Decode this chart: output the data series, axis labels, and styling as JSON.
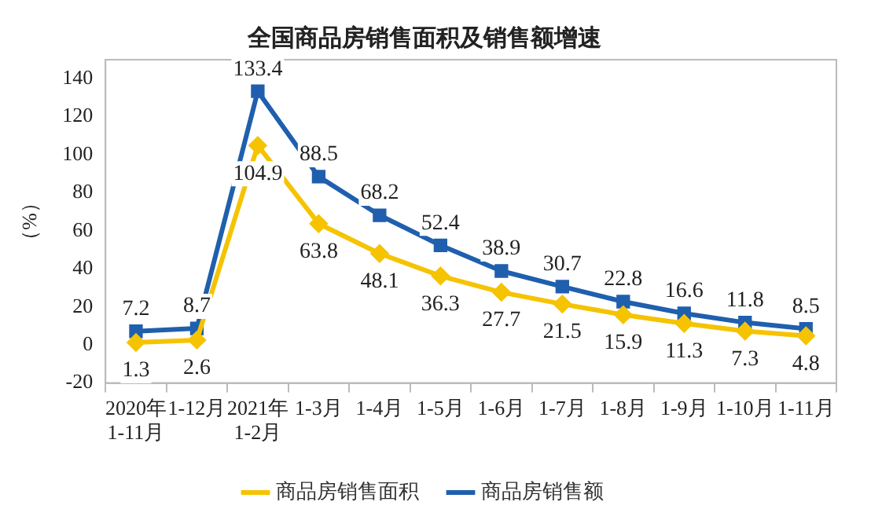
{
  "chart_data": {
    "type": "line",
    "title": "全国商品房销售面积及销售额增速",
    "ylabel": "（%）",
    "categories": [
      "2020年\n1-11月",
      "1-12月",
      "2021年\n1-2月",
      "1-3月",
      "1-4月",
      "1-5月",
      "1-6月",
      "1-7月",
      "1-8月",
      "1-9月",
      "1-10月",
      "1-11月"
    ],
    "series": [
      {
        "name": "商品房销售面积",
        "color": "#f5c300",
        "marker": "diamond",
        "values": [
          1.3,
          2.6,
          104.9,
          63.8,
          48.1,
          36.3,
          27.7,
          21.5,
          15.9,
          11.3,
          7.3,
          4.8
        ]
      },
      {
        "name": "商品房销售额",
        "color": "#1f5fae",
        "marker": "square",
        "values": [
          7.2,
          8.7,
          133.4,
          88.5,
          68.2,
          52.4,
          38.9,
          30.7,
          22.8,
          16.6,
          11.8,
          8.5
        ]
      }
    ],
    "ylim": [
      -20,
      150
    ],
    "yticks": [
      -20,
      0,
      20,
      40,
      60,
      80,
      100,
      120,
      140
    ],
    "grid": false,
    "legend": "bottom",
    "data_labels": true
  }
}
